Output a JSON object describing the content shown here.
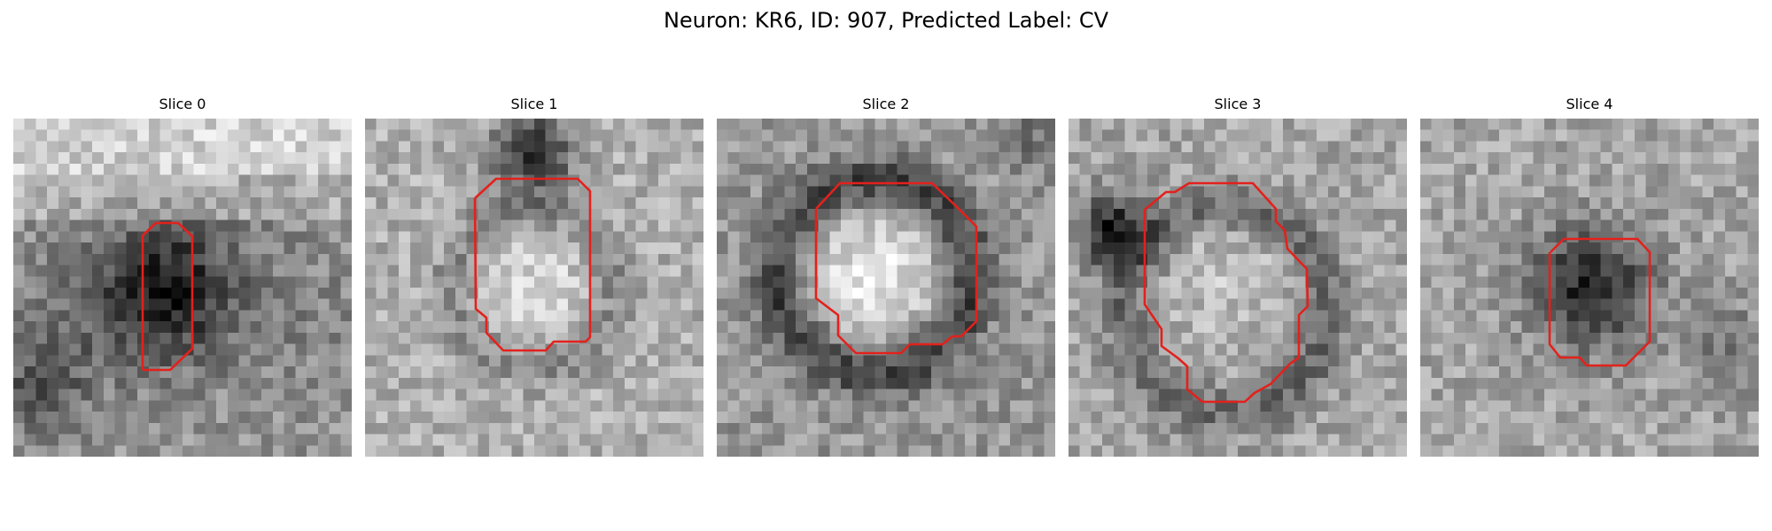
{
  "figure": {
    "title": "Neuron: KR6, ID: 907, Predicted Label: CV",
    "contour_color": "#e3211c",
    "colormap": "grayscale",
    "slices": [
      {
        "label": "Slice 0"
      },
      {
        "label": "Slice 1"
      },
      {
        "label": "Slice 2"
      },
      {
        "label": "Slice 3"
      },
      {
        "label": "Slice 4"
      }
    ]
  }
}
